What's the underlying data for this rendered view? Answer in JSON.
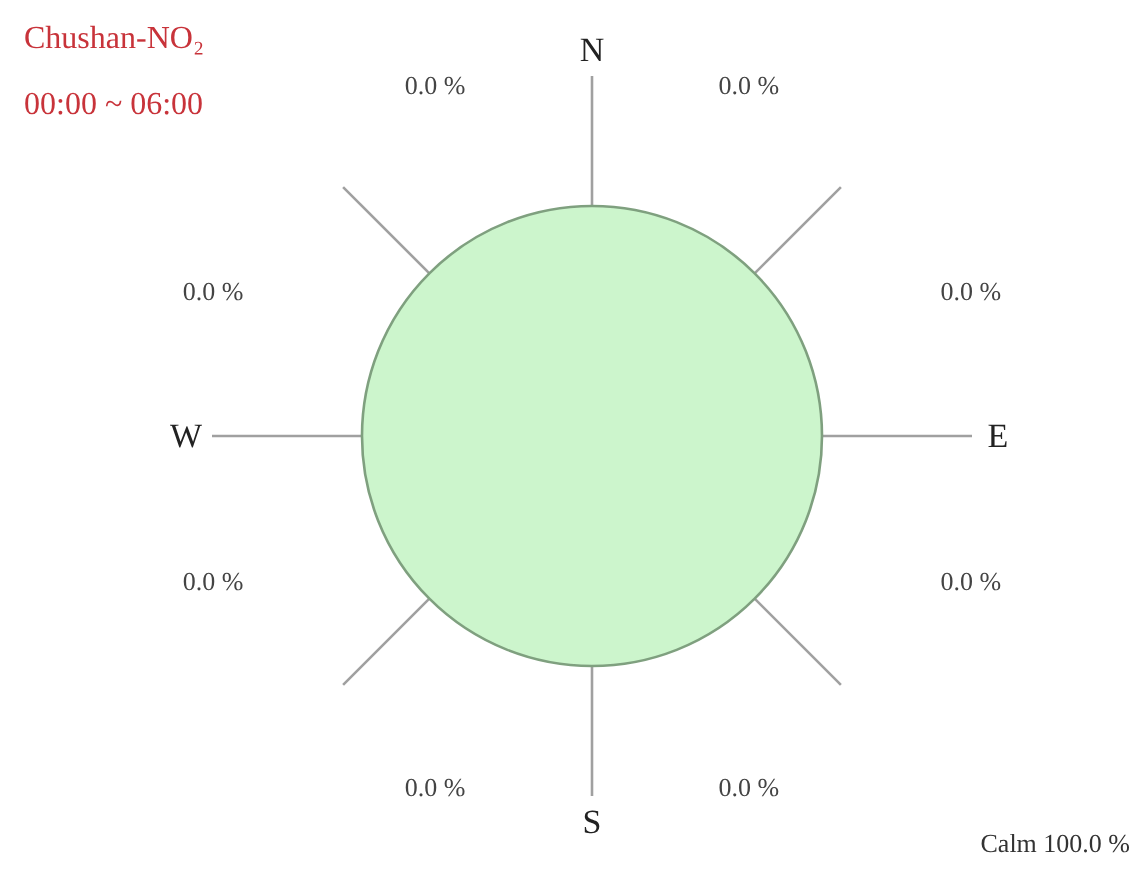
{
  "chart_data": {
    "type": "other",
    "title": "Chushan-NO₂",
    "subtitle": "00:00 ~ 06:00",
    "categories": [
      "N",
      "E",
      "S",
      "W"
    ],
    "series": [
      {
        "values": [
          0.0,
          0.0,
          0.0,
          0.0
        ],
        "value_labels": [
          "0.0 %",
          "0.0 %",
          "0.0 %",
          "0.0 %"
        ]
      },
      {
        "values": [
          0.0,
          0.0,
          0.0,
          0.0
        ],
        "value_labels": [
          "0.0 %",
          "0.0 %",
          "0.0 %",
          "0.0 %"
        ]
      }
    ],
    "annotations": [
      "Calm 100.0 %"
    ]
  }
}
